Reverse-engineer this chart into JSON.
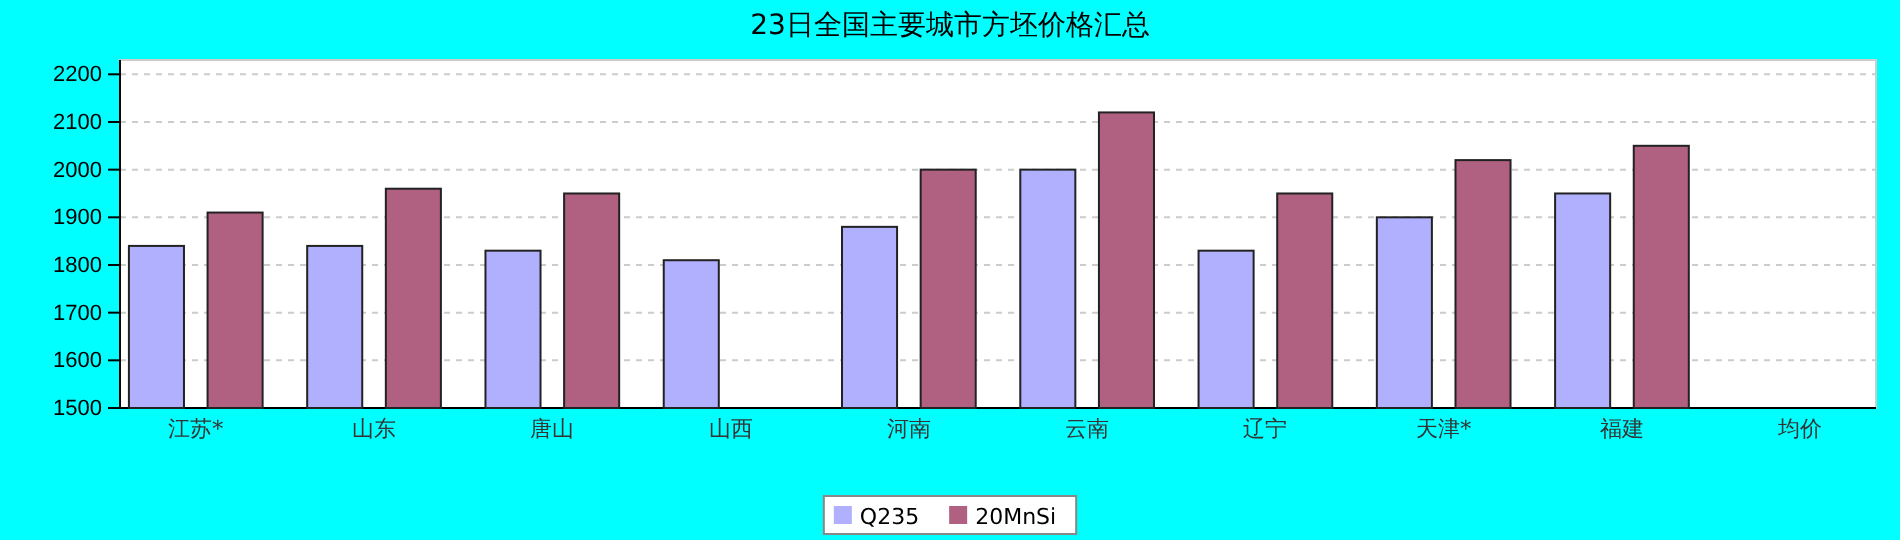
{
  "chart_data": {
    "type": "bar",
    "title": "23日全国主要城市方坯价格汇总",
    "categories": [
      "江苏*",
      "山东",
      "唐山",
      "山西",
      "河南",
      "云南",
      "辽宁",
      "天津*",
      "福建",
      "均价"
    ],
    "series": [
      {
        "name": "Q235",
        "color": "#b0b0ff",
        "values": [
          1840,
          1840,
          1830,
          1810,
          1880,
          2000,
          1830,
          1900,
          1950,
          null
        ]
      },
      {
        "name": "20MnSi",
        "color": "#b06080",
        "values": [
          1910,
          1960,
          1950,
          null,
          2000,
          2120,
          1950,
          2020,
          2050,
          null
        ]
      }
    ],
    "ylim": [
      1500,
      2230
    ],
    "yticks": [
      1500,
      1600,
      1700,
      1800,
      1900,
      2000,
      2100,
      2200
    ],
    "grid": "y",
    "legend": "bottom"
  }
}
